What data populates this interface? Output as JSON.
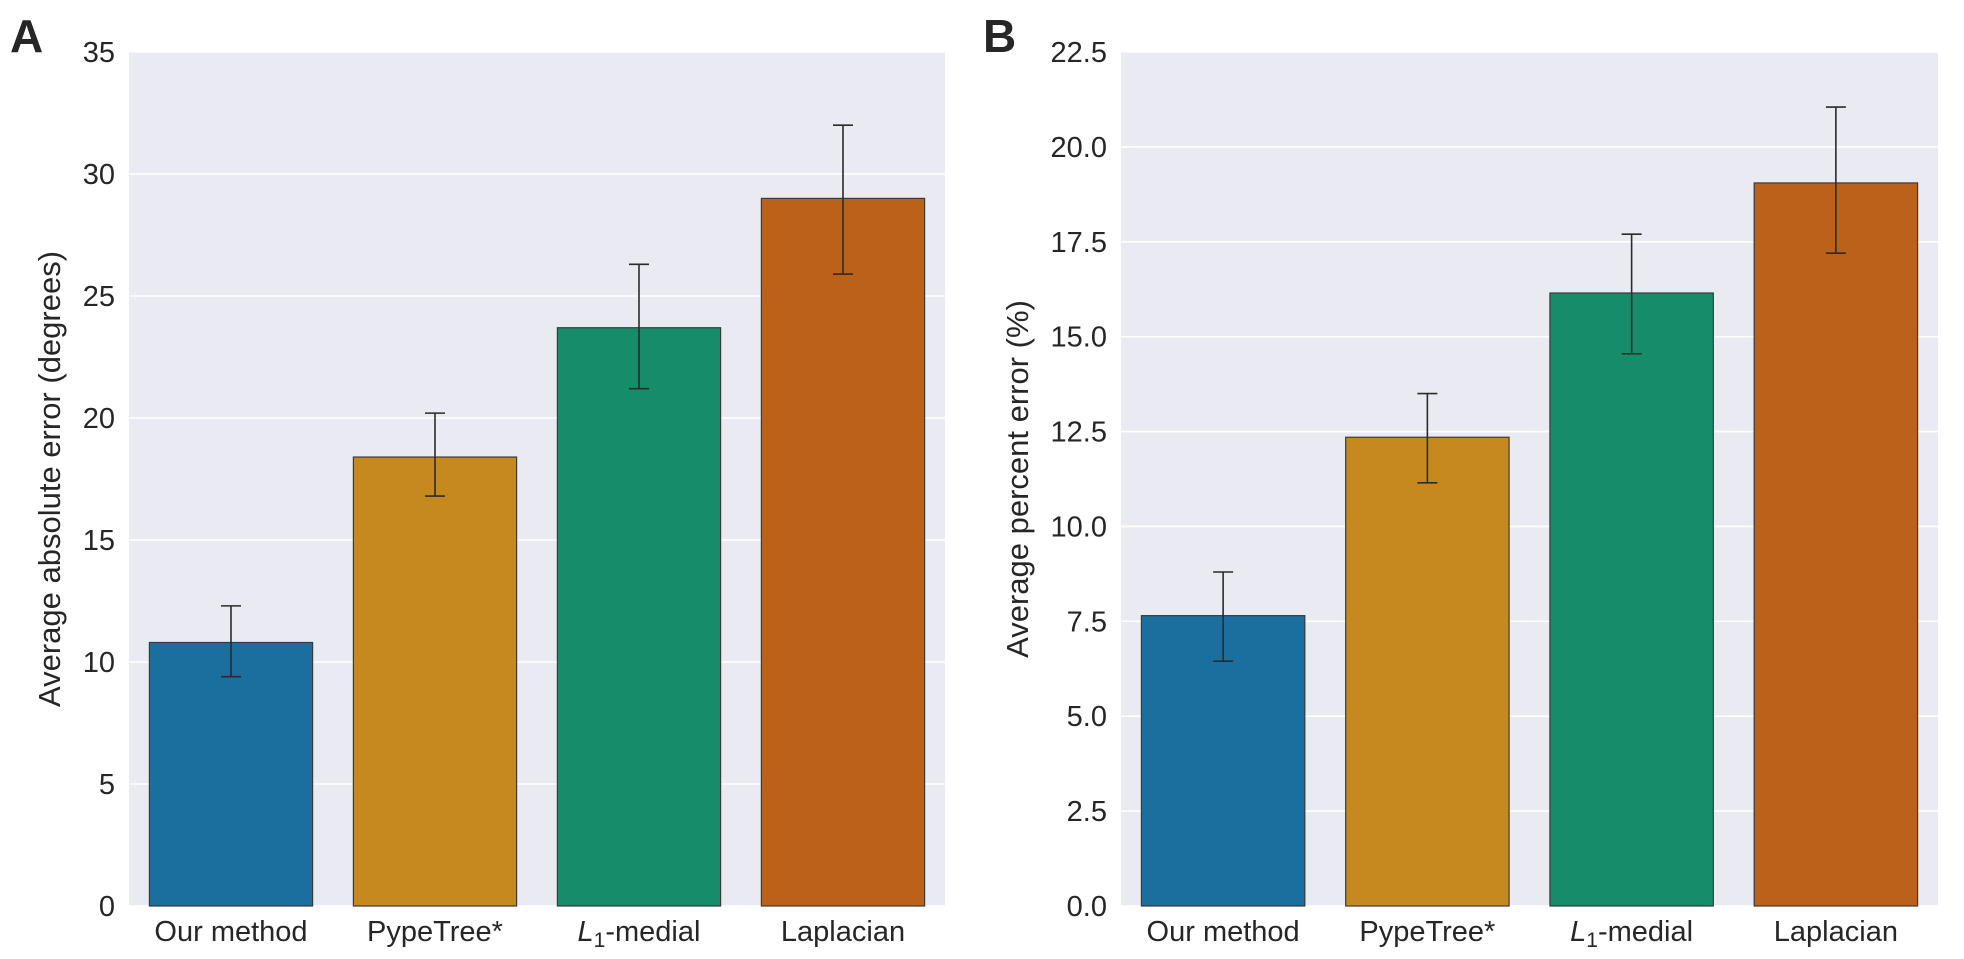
{
  "chart_data": [
    {
      "type": "bar",
      "panel_label": "A",
      "categories": [
        "Our method",
        "PypeTree*",
        "L1-medial",
        "Laplacian"
      ],
      "values": [
        10.8,
        18.4,
        23.7,
        29.0
      ],
      "error_low": [
        9.4,
        16.8,
        21.2,
        25.9
      ],
      "error_high": [
        12.3,
        20.2,
        26.3,
        32.0
      ],
      "title": "",
      "xlabel": "",
      "ylabel": "Average absolute error (degrees)",
      "ylim": [
        0,
        35
      ],
      "yticks": [
        0,
        5,
        10,
        15,
        20,
        25,
        30,
        35
      ],
      "ytick_labels": [
        "0",
        "5",
        "10",
        "15",
        "20",
        "25",
        "30",
        "35"
      ],
      "grid": true
    },
    {
      "type": "bar",
      "panel_label": "B",
      "categories": [
        "Our method",
        "PypeTree*",
        "L1-medial",
        "Laplacian"
      ],
      "values": [
        7.65,
        12.35,
        16.15,
        19.05
      ],
      "error_low": [
        6.45,
        11.15,
        14.55,
        17.2
      ],
      "error_high": [
        8.8,
        13.5,
        17.7,
        21.05
      ],
      "title": "",
      "xlabel": "",
      "ylabel": "Average percent error (%)",
      "ylim": [
        0,
        22.5
      ],
      "yticks": [
        0,
        2.5,
        5,
        7.5,
        10,
        12.5,
        15,
        17.5,
        20,
        22.5
      ],
      "ytick_labels": [
        "0.0",
        "2.5",
        "5.0",
        "7.5",
        "10.0",
        "12.5",
        "15.0",
        "17.5",
        "20.0",
        "22.5"
      ],
      "grid": true
    }
  ],
  "colors": {
    "bars": [
      "#1b6f9f",
      "#c5891f",
      "#178c6b",
      "#bc611a"
    ],
    "axes_bg": "#eaeaf2",
    "grid": "#ffffff",
    "text": "#262626",
    "bar_edge": "#3a3a3a",
    "error_bar": "#2b2b2b"
  }
}
